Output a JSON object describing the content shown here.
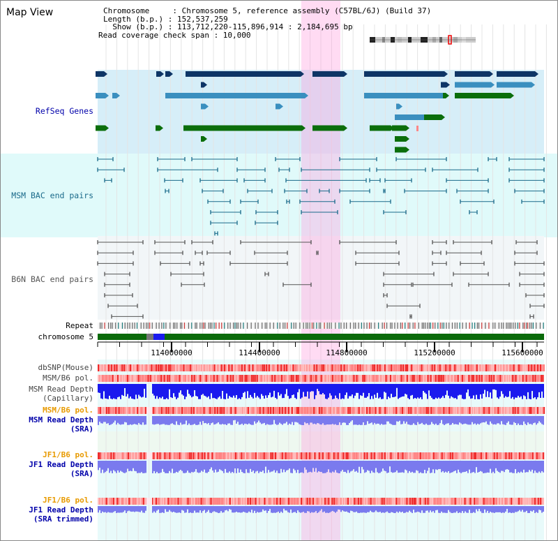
{
  "page": {
    "title": "Map View"
  },
  "header": {
    "chromosome_label": "Chromosome     : Chromosome 5, reference assembly (C57BL/6J) (Build 37)",
    "length_label": "Length (b.p.) : 152,537,259",
    "show_label": "  Show (b.p.) : 113,712,220-115,896,914 : 2,184,695 bp",
    "coverage_label": "Read coverage check span : 10,000"
  },
  "tracks": {
    "refseq": "RefSeq Genes",
    "msm_bac": "MSM BAC end pairs",
    "b6n_bac": "B6N BAC end pairs",
    "repeat": "Repeat",
    "chromosome": "chromosome 5",
    "dbsnp": "dbSNP(Mouse)",
    "msm_b6_pol_1": "MSM/B6 pol.",
    "msm_depth_cap_1": "MSM Read Depth",
    "msm_depth_cap_2": "(Capillary)",
    "msm_b6_pol_2": "MSM/B6 pol.",
    "msm_depth_sra_1": "MSM Read Depth",
    "msm_depth_sra_2": "(SRA)",
    "jf1_b6_pol_1": "JF1/B6 pol.",
    "jf1_depth_1": "JF1 Read Depth",
    "jf1_depth_2": "(SRA)",
    "jf1_b6_pol_2": "JF1/B6 pol.",
    "jf1_trim_1": "JF1 Read Depth",
    "jf1_trim_2": "(SRA trimmed)"
  },
  "ruler": {
    "ticks": [
      "114000000",
      "114400000",
      "114800000",
      "115200000",
      "115600000"
    ]
  },
  "colors": {
    "refseq_bg": "#d6eef8",
    "msm_bg": "#e0fafa",
    "b6n_bg": "#f2f6f8",
    "highlight": "#ff99dd",
    "gene_navy": "#0e3566",
    "gene_teal": "#3a8fbf",
    "gene_green": "#0b6e0b",
    "msm_line": "#1a6a8a",
    "b6n_line": "#555555",
    "chrom_green": "#0a6a0a",
    "depth_blue": "#1a1aee",
    "depth_light": "#7a7aee",
    "pol_red": "#ee3030",
    "label_blue": "#0000aa",
    "label_orange": "#e89a00",
    "label_teal": "#1a6a8a"
  }
}
